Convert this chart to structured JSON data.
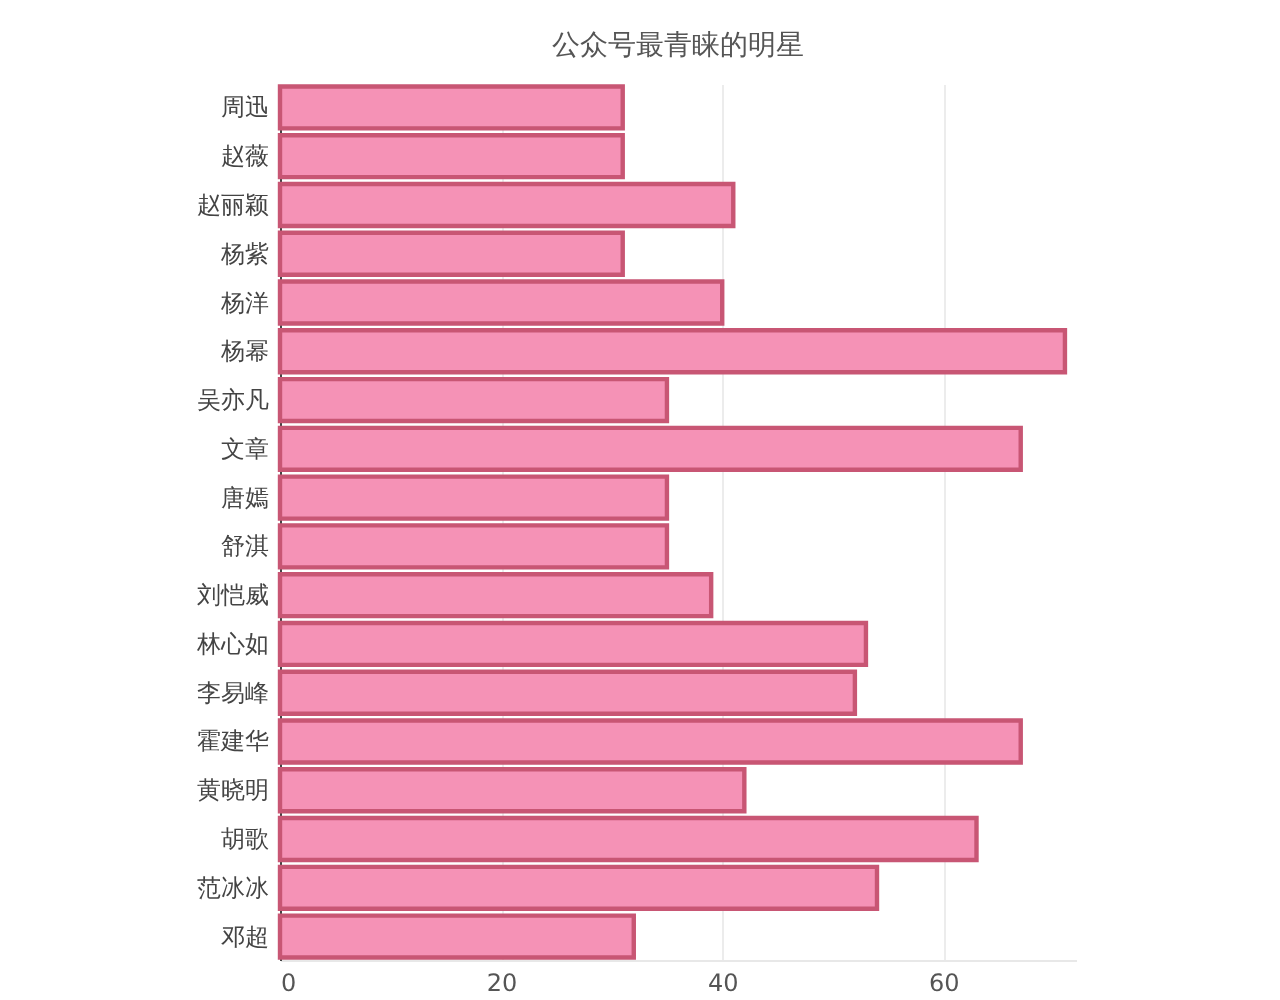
{
  "chart_data": {
    "type": "bar",
    "orientation": "horizontal",
    "title": "公众号最青睐的明星",
    "categories": [
      "周迅",
      "赵薇",
      "赵丽颖",
      "杨紫",
      "杨洋",
      "杨幂",
      "吴亦凡",
      "文章",
      "唐嫣",
      "舒淇",
      "刘恺威",
      "林心如",
      "李易峰",
      "霍建华",
      "黄晓明",
      "胡歌",
      "范冰冰",
      "邓超"
    ],
    "values": [
      31,
      31,
      41,
      31,
      40,
      71,
      35,
      67,
      35,
      35,
      39,
      53,
      52,
      67,
      42,
      63,
      54,
      32
    ],
    "color": "#f592b6",
    "xlim": [
      0,
      72
    ],
    "xticks": [
      0,
      20,
      40,
      60
    ],
    "grid": "x"
  }
}
